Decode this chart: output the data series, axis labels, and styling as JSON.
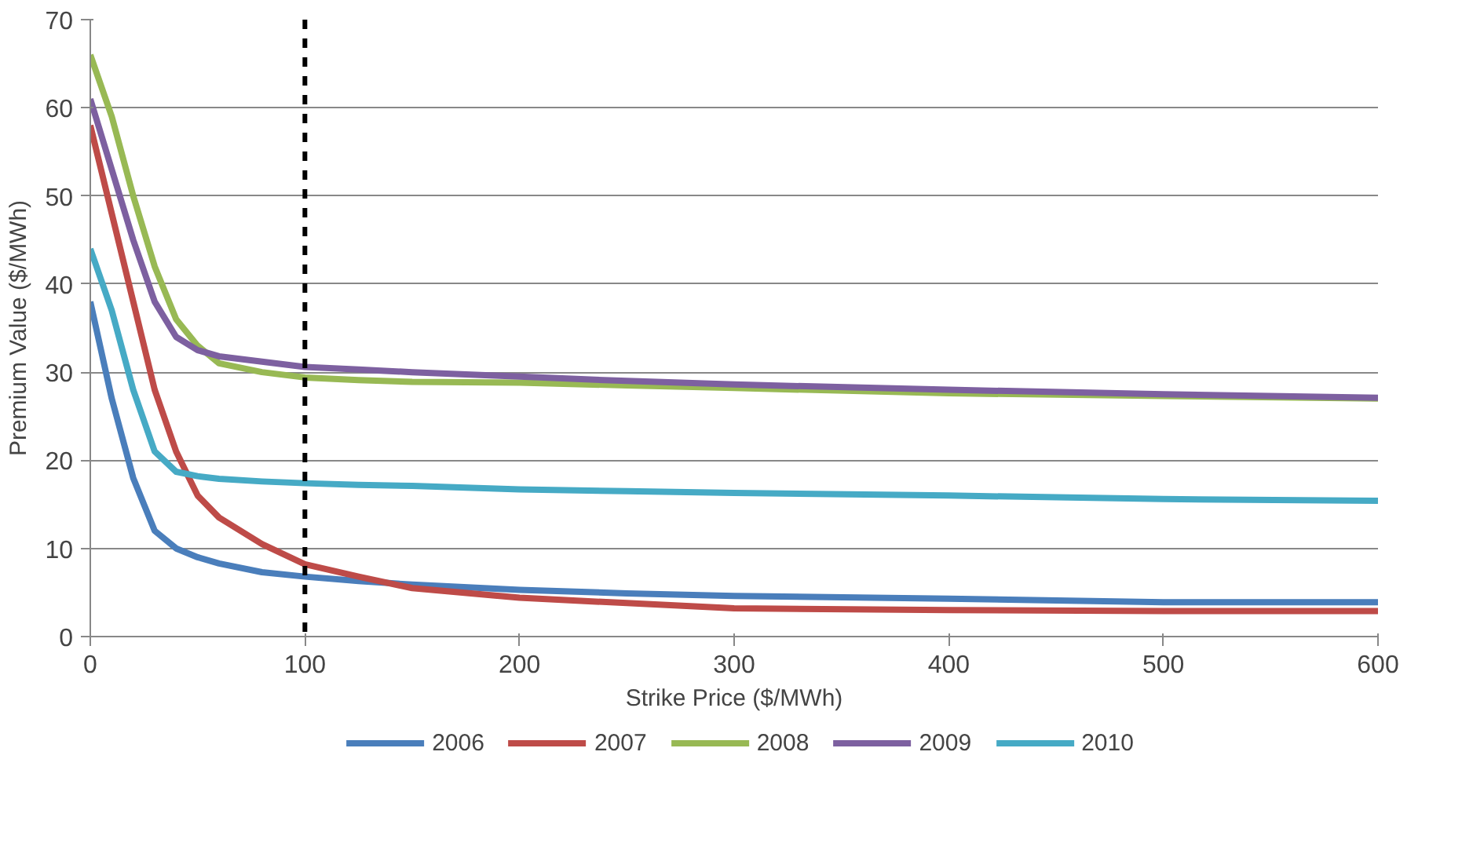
{
  "chart_data": {
    "type": "line",
    "xlabel": "Strike Price ($/MWh)",
    "ylabel": "Premium Value ($/MWh)",
    "xlim": [
      0,
      600
    ],
    "xticks": [
      0,
      100,
      200,
      300,
      400,
      500,
      600
    ],
    "ylim": [
      0,
      70
    ],
    "yticks": [
      0,
      10,
      20,
      30,
      40,
      50,
      60,
      70
    ],
    "grid": "y",
    "legend": "bottom",
    "marker": "none",
    "line_style": "solid",
    "x": [
      0,
      10,
      20,
      30,
      40,
      50,
      60,
      80,
      100,
      125,
      150,
      200,
      250,
      300,
      400,
      500,
      600
    ],
    "series": [
      {
        "name": "2006",
        "color": "#4a7ebb",
        "values": [
          38,
          27,
          18,
          12,
          10,
          9,
          8.3,
          7.3,
          6.8,
          6.3,
          5.9,
          5.3,
          4.9,
          4.6,
          4.3,
          3.9,
          3.9
        ]
      },
      {
        "name": "2007",
        "color": "#be4b48",
        "values": [
          58,
          48,
          38,
          28,
          21,
          16,
          13.5,
          10.5,
          8.2,
          6.8,
          5.5,
          4.4,
          3.8,
          3.2,
          3.0,
          2.9,
          2.9
        ]
      },
      {
        "name": "2008",
        "color": "#98b954",
        "values": [
          66,
          59,
          50,
          42,
          36,
          33,
          31,
          30,
          29.4,
          29.1,
          28.9,
          28.8,
          28.5,
          28.2,
          27.6,
          27.3,
          27
        ]
      },
      {
        "name": "2009",
        "color": "#7d60a0",
        "values": [
          61,
          53,
          45,
          38,
          34,
          32.5,
          31.8,
          31.2,
          30.6,
          30.3,
          30,
          29.5,
          29,
          28.6,
          28,
          27.5,
          27.1
        ]
      },
      {
        "name": "2010",
        "color": "#46aac5",
        "values": [
          44,
          37,
          28,
          21,
          18.7,
          18.2,
          17.9,
          17.6,
          17.4,
          17.2,
          17.1,
          16.7,
          16.5,
          16.3,
          16,
          15.6,
          15.4
        ]
      }
    ],
    "ref_lines": [
      {
        "axis": "x",
        "value": 100,
        "color": "#000000",
        "line_style": "dashed"
      }
    ]
  }
}
